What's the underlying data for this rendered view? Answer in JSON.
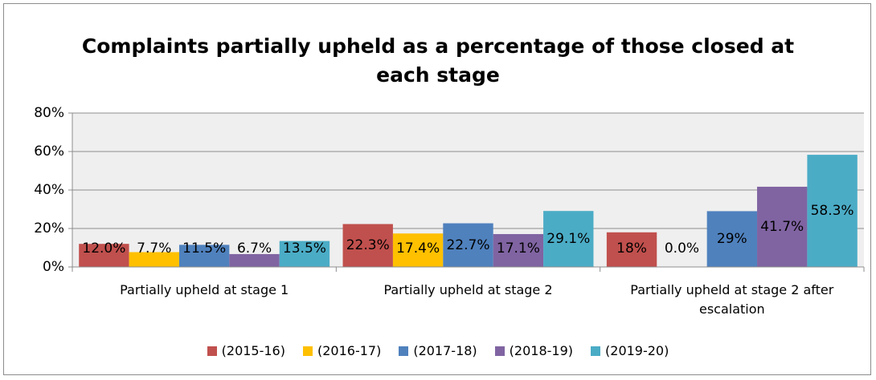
{
  "chart_data": {
    "type": "bar",
    "title": "Complaints partially upheld as a percentage of those closed at each stage",
    "categories": [
      "Partially upheld at stage 1",
      "Partially upheld at stage 2",
      "Partially upheld at stage 2 after escalation"
    ],
    "series": [
      {
        "name": "(2015-16)",
        "color": "#c0504d",
        "values": [
          12.0,
          22.3,
          18
        ],
        "value_labels": [
          "12.0%",
          "22.3%",
          "18%"
        ]
      },
      {
        "name": "(2016-17)",
        "color": "#ffc000",
        "values": [
          7.7,
          17.4,
          0.0
        ],
        "value_labels": [
          "7.7%",
          "17.4%",
          "0.0%"
        ]
      },
      {
        "name": "(2017-18)",
        "color": "#4f81bd",
        "values": [
          11.5,
          22.7,
          29
        ],
        "value_labels": [
          "11.5%",
          "22.7%",
          "29%"
        ]
      },
      {
        "name": "(2018-19)",
        "color": "#8064a2",
        "values": [
          6.7,
          17.1,
          41.7
        ],
        "value_labels": [
          "6.7%",
          "17.1%",
          "41.7%"
        ]
      },
      {
        "name": "(2019-20)",
        "color": "#4bacc6",
        "values": [
          13.5,
          29.1,
          58.3
        ],
        "value_labels": [
          "13.5%",
          "29.1%",
          "58.3%"
        ]
      }
    ],
    "ylim": [
      0,
      80
    ],
    "yticks": [
      {
        "value": 0,
        "label": "0%"
      },
      {
        "value": 20,
        "label": "20%"
      },
      {
        "value": 40,
        "label": "40%"
      },
      {
        "value": 60,
        "label": "60%"
      },
      {
        "value": 80,
        "label": "80%"
      }
    ],
    "grid": true,
    "legend": "bottom"
  }
}
